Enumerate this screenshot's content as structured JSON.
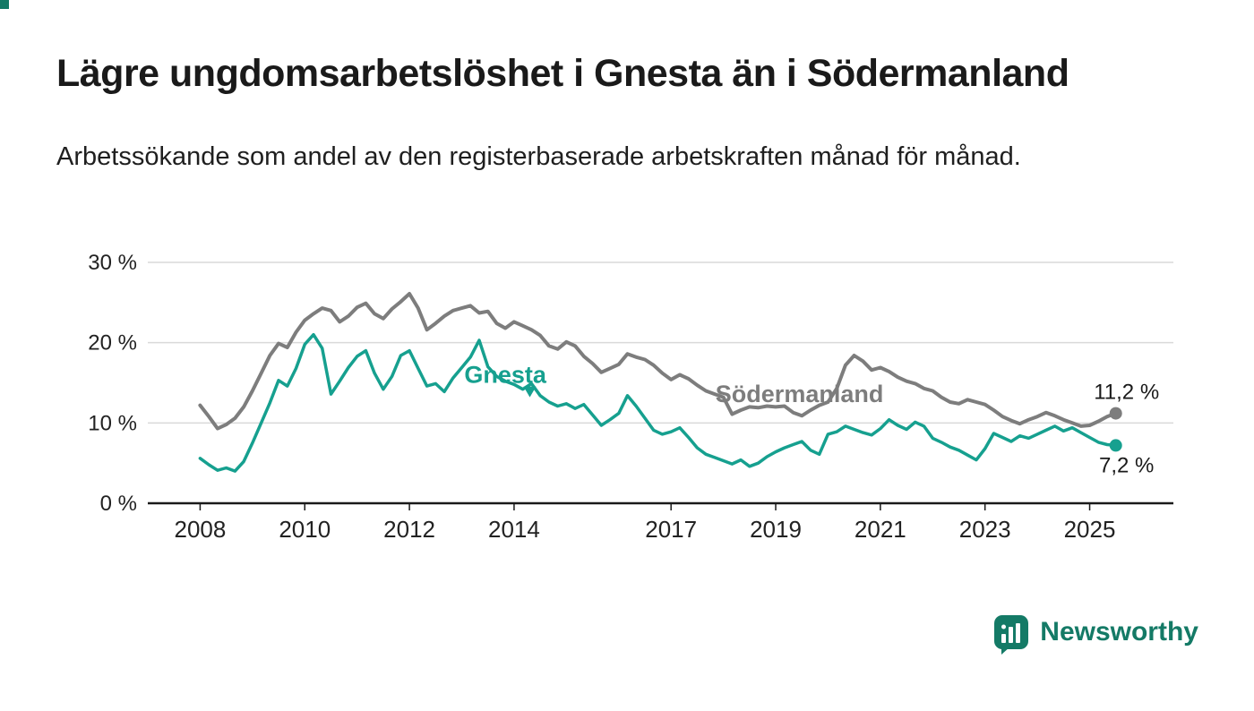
{
  "header": {
    "title": "Lägre ungdomsarbetslöshet i Gnesta än i Södermanland",
    "subtitle": "Arbetssökande som andel av den registerbaserade arbetskraften månad för månad."
  },
  "colors": {
    "background": "#ffffff",
    "title": "#1a1a1a",
    "grid": "#d9d9d9",
    "axis": "#1a1a1a",
    "tick_label": "#222222",
    "annotation": "#1a1a1a",
    "gnesta": "#16a08f",
    "sodermanland": "#7d7d7d",
    "brand": "#147a66"
  },
  "chart_data": {
    "type": "line",
    "title": "Lägre ungdomsarbetslöshet i Gnesta än i Södermanland",
    "subtitle": "Arbetssökande som andel av den registerbaserade arbetskraften månad för månad.",
    "unit": "%",
    "x_unit": "year",
    "x_start": 2008.0,
    "x_step_years": 0.166667,
    "xlim": [
      2007.0,
      2026.6
    ],
    "ylim": [
      0,
      30
    ],
    "x_ticks": [
      2008,
      2010,
      2012,
      2014,
      2017,
      2019,
      2021,
      2023,
      2025
    ],
    "y_ticks": [
      0,
      10,
      20,
      30
    ],
    "y_tick_labels": [
      "0 %",
      "10 %",
      "20 %",
      "30 %"
    ],
    "grid": true,
    "legend": "inline-labels",
    "series": [
      {
        "name": "Södermanland",
        "key": "sodermanland",
        "color": "#7d7d7d",
        "line_width": 4,
        "end_value": 11.2,
        "end_label": "11,2 %",
        "end_label_position": "above",
        "label_anchor": {
          "year": 2017.85,
          "value": 12.6
        },
        "values": [
          12.2,
          10.8,
          9.3,
          9.8,
          10.6,
          12.0,
          14.0,
          16.2,
          18.4,
          19.9,
          19.4,
          21.3,
          22.8,
          23.6,
          24.3,
          24.0,
          22.6,
          23.3,
          24.4,
          24.9,
          23.6,
          23.0,
          24.2,
          25.1,
          26.1,
          24.3,
          21.6,
          22.4,
          23.3,
          24.0,
          24.3,
          24.6,
          23.7,
          23.9,
          22.4,
          21.8,
          22.6,
          22.1,
          21.6,
          20.9,
          19.6,
          19.2,
          20.1,
          19.6,
          18.3,
          17.4,
          16.3,
          16.8,
          17.3,
          18.6,
          18.2,
          17.9,
          17.2,
          16.2,
          15.4,
          16.0,
          15.5,
          14.7,
          14.0,
          13.6,
          13.2,
          11.1,
          11.6,
          12.0,
          11.9,
          12.1,
          12.0,
          12.1,
          11.3,
          10.9,
          11.6,
          12.2,
          12.6,
          14.3,
          17.2,
          18.4,
          17.7,
          16.6,
          16.9,
          16.4,
          15.7,
          15.2,
          14.9,
          14.3,
          14.0,
          13.2,
          12.6,
          12.4,
          12.9,
          12.6,
          12.3,
          11.6,
          10.8,
          10.3,
          9.9,
          10.4,
          10.8,
          11.3,
          10.9,
          10.4,
          10.0,
          9.6,
          9.7,
          10.2,
          10.8,
          11.2
        ]
      },
      {
        "name": "Gnesta",
        "key": "gnesta",
        "color": "#16a08f",
        "line_width": 3.5,
        "end_value": 7.2,
        "end_label": "7,2 %",
        "end_label_position": "below",
        "label_anchor": {
          "year": 2013.05,
          "value": 15.0
        },
        "pointer": {
          "year": 2014.3,
          "value": 13.2
        },
        "values": [
          5.6,
          4.8,
          4.1,
          4.4,
          4.0,
          5.2,
          7.5,
          10.0,
          12.5,
          15.3,
          14.6,
          16.8,
          19.8,
          21.0,
          19.3,
          13.6,
          15.2,
          16.9,
          18.3,
          19.0,
          16.2,
          14.2,
          15.8,
          18.4,
          19.0,
          16.8,
          14.6,
          14.9,
          13.9,
          15.6,
          16.9,
          18.2,
          20.3,
          17.0,
          15.8,
          15.2,
          14.8,
          14.2,
          14.9,
          13.4,
          12.6,
          12.1,
          12.4,
          11.8,
          12.3,
          11.0,
          9.7,
          10.4,
          11.2,
          13.4,
          12.1,
          10.6,
          9.1,
          8.6,
          8.9,
          9.4,
          8.2,
          6.9,
          6.1,
          5.7,
          5.3,
          4.9,
          5.4,
          4.6,
          5.0,
          5.8,
          6.4,
          6.9,
          7.3,
          7.7,
          6.6,
          6.1,
          8.6,
          8.9,
          9.6,
          9.2,
          8.8,
          8.5,
          9.3,
          10.4,
          9.7,
          9.2,
          10.1,
          9.6,
          8.1,
          7.6,
          7.0,
          6.6,
          6.0,
          5.4,
          6.8,
          8.7,
          8.2,
          7.7,
          8.4,
          8.1,
          8.6,
          9.1,
          9.6,
          9.0,
          9.4,
          8.8,
          8.2,
          7.6,
          7.3,
          7.2
        ]
      }
    ]
  },
  "logo": {
    "text": "Newsworthy"
  }
}
